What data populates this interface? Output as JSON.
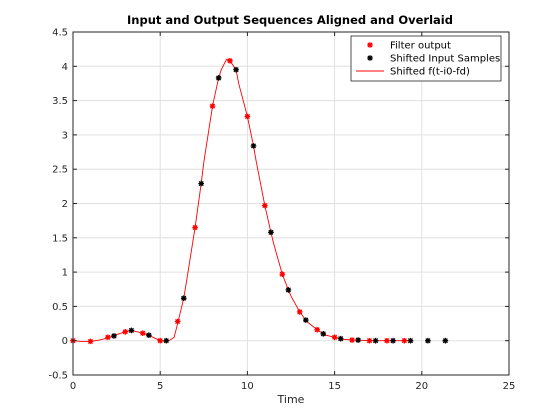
{
  "chart_data": {
    "type": "line",
    "title": "Input and Output Sequences Aligned and Overlaid",
    "xlabel": "Time",
    "ylabel": "",
    "xlim": [
      0,
      25
    ],
    "ylim": [
      -0.5,
      4.5
    ],
    "xticks": [
      0,
      5,
      10,
      15,
      20,
      25
    ],
    "yticks": [
      -0.5,
      0,
      0.5,
      1,
      1.5,
      2,
      2.5,
      3,
      3.5,
      4,
      4.5
    ],
    "xtick_labels": [
      "0",
      "5",
      "10",
      "15",
      "20",
      "25"
    ],
    "ytick_labels": [
      "-0.5",
      "0",
      "0.5",
      "1",
      "1.5",
      "2",
      "2.5",
      "3",
      "3.5",
      "4",
      "4.5"
    ],
    "grid": true,
    "legend": "top-right",
    "series": [
      {
        "name": "Filter output",
        "kind": "marker",
        "marker": "asterisk",
        "color": "#ff0000",
        "x": [
          0,
          1,
          2,
          3,
          4,
          5,
          6,
          7,
          8,
          9,
          10,
          11,
          12,
          13,
          14,
          15,
          16,
          17,
          18,
          19
        ],
        "y": [
          0,
          -0.01,
          0.05,
          0.13,
          0.11,
          0.0,
          0.28,
          1.65,
          3.42,
          4.08,
          3.27,
          1.97,
          0.97,
          0.42,
          0.16,
          0.05,
          0.01,
          0.0,
          0.0,
          0.0
        ]
      },
      {
        "name": "Shifted Input Samples",
        "kind": "marker",
        "marker": "asterisk",
        "color": "#000000",
        "x": [
          2.35,
          3.35,
          4.35,
          5.35,
          6.35,
          7.35,
          8.35,
          9.35,
          10.35,
          11.35,
          12.35,
          13.35,
          14.35,
          15.35,
          16.35,
          17.35,
          18.35,
          19.35,
          20.35,
          21.35
        ],
        "y": [
          0.07,
          0.15,
          0.08,
          0.0,
          0.62,
          2.29,
          3.83,
          3.95,
          2.84,
          1.58,
          0.74,
          0.3,
          0.1,
          0.03,
          0.01,
          0.0,
          0.0,
          0.0,
          0.0,
          0.0
        ]
      },
      {
        "name": "Shifted f(t-i0-fd)",
        "kind": "line",
        "color": "#ff0000",
        "x": [
          0,
          0.5,
          1,
          1.5,
          2,
          2.5,
          3,
          3.35,
          3.5,
          4,
          4.35,
          4.5,
          5,
          5.35,
          5.5,
          5.8,
          6,
          6.35,
          6.5,
          7,
          7.35,
          7.5,
          8,
          8.35,
          8.5,
          8.8,
          9,
          9.35,
          9.5,
          10,
          10.35,
          10.5,
          11,
          11.35,
          11.5,
          12,
          12.35,
          12.5,
          13,
          13.35,
          13.5,
          14,
          14.35,
          14.5,
          15,
          15.35,
          15.5,
          16,
          16.5,
          17,
          17.5,
          18,
          18.5,
          19,
          19.5
        ],
        "y": [
          0,
          -0.01,
          -0.01,
          0.01,
          0.04,
          0.09,
          0.13,
          0.15,
          0.14,
          0.11,
          0.08,
          0.06,
          0.0,
          -0.01,
          0.0,
          0.05,
          0.25,
          0.62,
          0.85,
          1.65,
          2.29,
          2.6,
          3.42,
          3.83,
          3.95,
          4.1,
          4.08,
          3.95,
          3.75,
          3.27,
          2.84,
          2.62,
          1.97,
          1.58,
          1.42,
          0.97,
          0.74,
          0.65,
          0.42,
          0.3,
          0.26,
          0.16,
          0.1,
          0.08,
          0.05,
          0.03,
          0.02,
          0.01,
          0.005,
          0.0,
          0.0,
          0.0,
          0.0,
          0.0,
          0.0
        ]
      }
    ]
  }
}
